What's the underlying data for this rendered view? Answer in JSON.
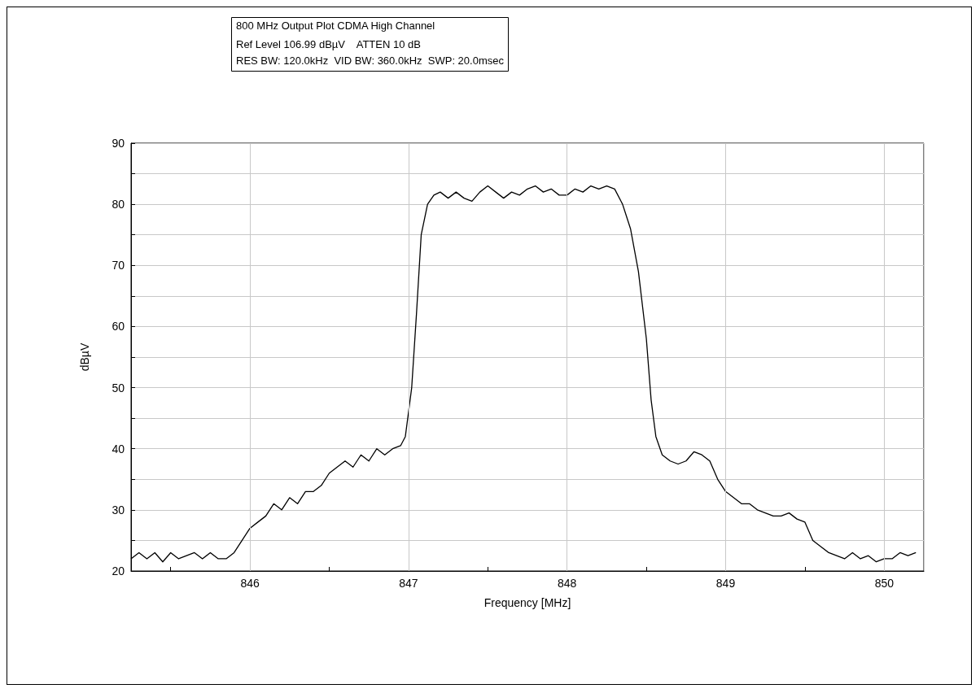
{
  "chart_data": {
    "type": "line",
    "title": "800 MHz Output Plot CDMA High Channel",
    "subtitle": "Ref Level 106.99 dBµV    ATTEN 10 dB\nRES BW: 120.0kHz  VID BW: 360.0kHz  SWP: 20.0msec",
    "xlabel": "Frequency [MHz]",
    "ylabel": "dBµV",
    "x": [
      845.25,
      845.3,
      845.35,
      845.4,
      845.45,
      845.5,
      845.55,
      845.6,
      845.65,
      845.7,
      845.75,
      845.8,
      845.85,
      845.9,
      845.95,
      846.0,
      846.05,
      846.1,
      846.15,
      846.2,
      846.25,
      846.3,
      846.35,
      846.4,
      846.45,
      846.5,
      846.55,
      846.6,
      846.65,
      846.7,
      846.75,
      846.8,
      846.85,
      846.9,
      846.95,
      846.98,
      847.02,
      847.05,
      847.08,
      847.12,
      847.16,
      847.2,
      847.25,
      847.3,
      847.35,
      847.4,
      847.45,
      847.5,
      847.55,
      847.6,
      847.65,
      847.7,
      847.75,
      847.8,
      847.85,
      847.9,
      847.95,
      848.0,
      848.05,
      848.1,
      848.15,
      848.2,
      848.25,
      848.3,
      848.35,
      848.4,
      848.45,
      848.5,
      848.53,
      848.56,
      848.6,
      848.65,
      848.7,
      848.75,
      848.8,
      848.85,
      848.9,
      848.95,
      849.0,
      849.05,
      849.1,
      849.15,
      849.2,
      849.25,
      849.3,
      849.35,
      849.4,
      849.45,
      849.5,
      849.55,
      849.6,
      849.65,
      849.7,
      849.75,
      849.8,
      849.85,
      849.9,
      849.95,
      850.0,
      850.05,
      850.1,
      850.15,
      850.2
    ],
    "series": [
      {
        "color": "#000000",
        "values": [
          22,
          23,
          22,
          23,
          21.5,
          23,
          22,
          22.5,
          23,
          22,
          23,
          22,
          22,
          23,
          25,
          27,
          28,
          29,
          31,
          30,
          32,
          31,
          33,
          33,
          34,
          36,
          37,
          38,
          37,
          39,
          38,
          40,
          39,
          40,
          40.5,
          42,
          50,
          62,
          75,
          80,
          81.5,
          82,
          81,
          82,
          81,
          80.5,
          82,
          83,
          82,
          81,
          82,
          81.5,
          82.5,
          83,
          82,
          82.5,
          81.5,
          81.5,
          82.5,
          82,
          83,
          82.5,
          83,
          82.5,
          80,
          76,
          69,
          58,
          48,
          42,
          39,
          38,
          37.5,
          38,
          39.5,
          39,
          38,
          35,
          33,
          32,
          31,
          31,
          30,
          29.5,
          29,
          29,
          29.5,
          28.5,
          28,
          25,
          24,
          23,
          22.5,
          22,
          23,
          22,
          22.5,
          21.5,
          22,
          22,
          23,
          22.5,
          23
        ]
      }
    ],
    "xlim": [
      845.25,
      850.25
    ],
    "xticks": [
      {
        "value": 845.5,
        "label": null
      },
      846,
      {
        "value": 846.5,
        "label": null
      },
      847,
      {
        "value": 847.5,
        "label": null
      },
      848,
      {
        "value": 848.5,
        "label": null
      },
      849,
      {
        "value": 849.5,
        "label": null
      },
      850
    ],
    "ylim": [
      20,
      90
    ],
    "yticks": [
      20,
      {
        "value": 25,
        "label": null
      },
      30,
      {
        "value": 35,
        "label": null
      },
      40,
      {
        "value": 45,
        "label": null
      },
      50,
      {
        "value": 55,
        "label": null
      },
      60,
      {
        "value": 65,
        "label": null
      },
      70,
      {
        "value": 75,
        "label": null
      },
      80,
      {
        "value": 85,
        "label": null
      },
      90
    ],
    "grid": true,
    "marker": "none",
    "line_style": "solid"
  }
}
